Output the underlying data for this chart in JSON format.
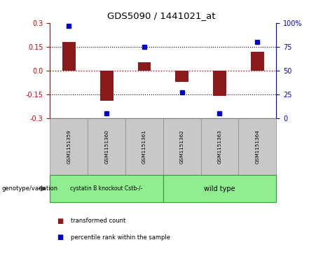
{
  "title": "GDS5090 / 1441021_at",
  "samples": [
    "GSM1151359",
    "GSM1151360",
    "GSM1151361",
    "GSM1151362",
    "GSM1151363",
    "GSM1151364"
  ],
  "transformed_count": [
    0.18,
    -0.19,
    0.05,
    -0.07,
    -0.16,
    0.12
  ],
  "percentile_rank": [
    97,
    5,
    75,
    27,
    5,
    80
  ],
  "ylim_left": [
    -0.3,
    0.3
  ],
  "ylim_right": [
    0,
    100
  ],
  "yticks_left": [
    -0.3,
    -0.15,
    0.0,
    0.15,
    0.3
  ],
  "yticks_right": [
    0,
    25,
    50,
    75,
    100
  ],
  "ytick_labels_right": [
    "0",
    "25",
    "50",
    "75",
    "100%"
  ],
  "bar_color": "#8B1A1A",
  "dot_color": "#0000CC",
  "hline_color": "#CC0000",
  "dotline_color": "#000000",
  "group1_label": "cystatin B knockout Cstb-/-",
  "group2_label": "wild type",
  "group1_color": "#90EE90",
  "group2_color": "#90EE90",
  "sample_box_color": "#C8C8C8",
  "legend_bar_label": "transformed count",
  "legend_dot_label": "percentile rank within the sample",
  "genotype_label": "genotype/variation",
  "background_color": "#FFFFFF",
  "plot_bg_color": "#FFFFFF",
  "bar_width": 0.35
}
